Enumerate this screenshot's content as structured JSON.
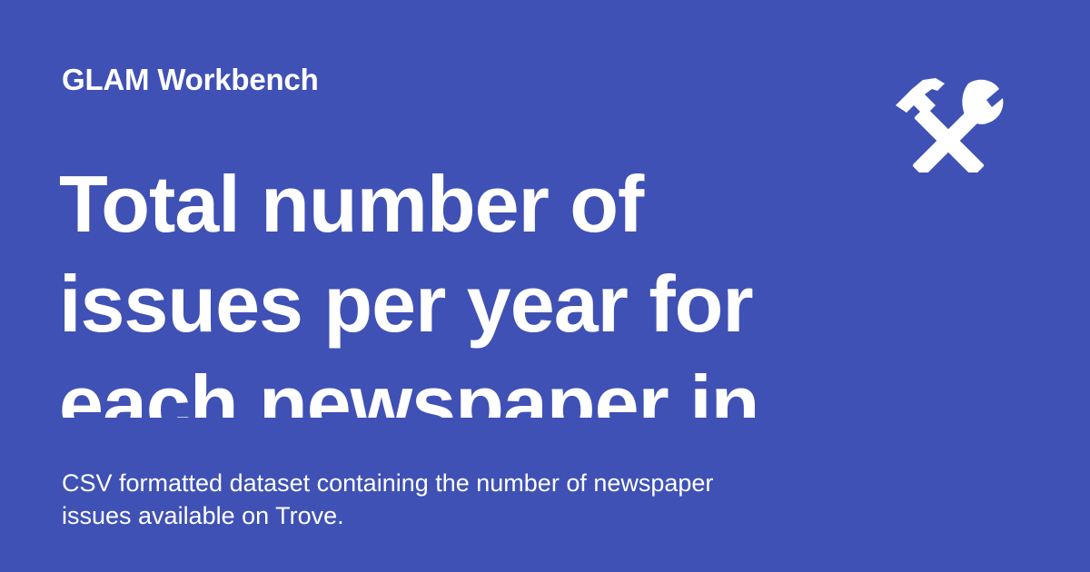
{
  "site": {
    "name": "GLAM Workbench"
  },
  "page": {
    "title": "Total number of issues per year for each newspaper in",
    "description": "CSV formatted dataset containing the number of newspaper issues available on Trove."
  },
  "icon": {
    "name": "tools-icon"
  },
  "colors": {
    "background": "#3f51b5",
    "text": "#ffffff"
  }
}
